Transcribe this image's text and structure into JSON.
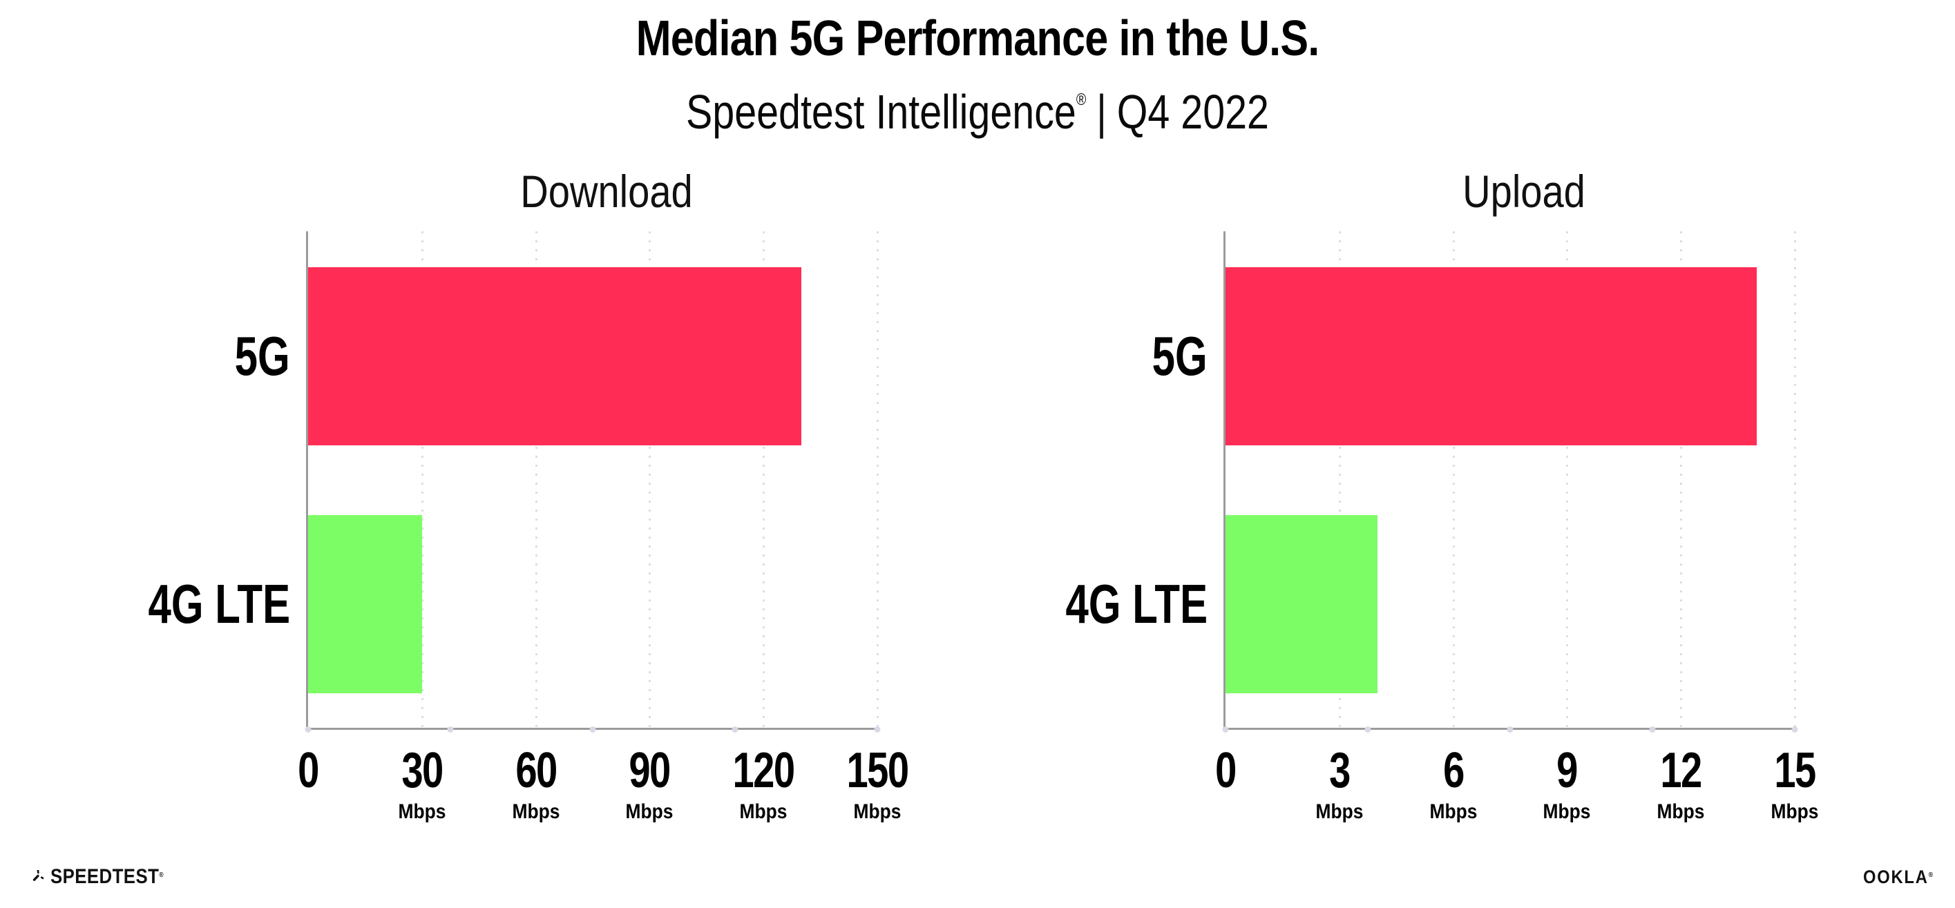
{
  "header": {
    "title": "Median 5G Performance in the U.S.",
    "subtitle_brand": "Speedtest Intelligence",
    "subtitle_reg": "®",
    "subtitle_separator": "|",
    "subtitle_period": "Q4 2022"
  },
  "footer": {
    "speedtest_wordmark": "SPEEDTEST",
    "speedtest_reg": "®",
    "ookla_wordmark": "OOKLA",
    "ookla_reg": "®"
  },
  "colors": {
    "bar_5g": "#FF2D55",
    "bar_4g_lte": "#7DFD65",
    "axis_line": "#9B9B9B",
    "gridline_dots": "#DCDDE8",
    "axis_marker_dots": "#D8D9E4",
    "title_text": "#000000"
  },
  "chart_data": [
    {
      "type": "bar",
      "orientation": "horizontal",
      "title": "Download",
      "categories": [
        "5G",
        "4G LTE"
      ],
      "values": [
        130,
        30
      ],
      "unit": "Mbps",
      "xlim": [
        0,
        150
      ],
      "xticks": [
        0,
        30,
        60,
        90,
        120,
        150
      ],
      "bar_colors": [
        "#FF2D55",
        "#7DFD65"
      ],
      "grid": "dotted vertical gridline at each labeled tick",
      "legend": "none"
    },
    {
      "type": "bar",
      "orientation": "horizontal",
      "title": "Upload",
      "categories": [
        "5G",
        "4G LTE"
      ],
      "values": [
        14,
        4
      ],
      "unit": "Mbps",
      "xlim": [
        0,
        15
      ],
      "xticks": [
        0,
        3,
        6,
        9,
        12,
        15
      ],
      "bar_colors": [
        "#FF2D55",
        "#7DFD65"
      ],
      "grid": "dotted vertical gridline at each labeled tick",
      "legend": "none"
    }
  ]
}
